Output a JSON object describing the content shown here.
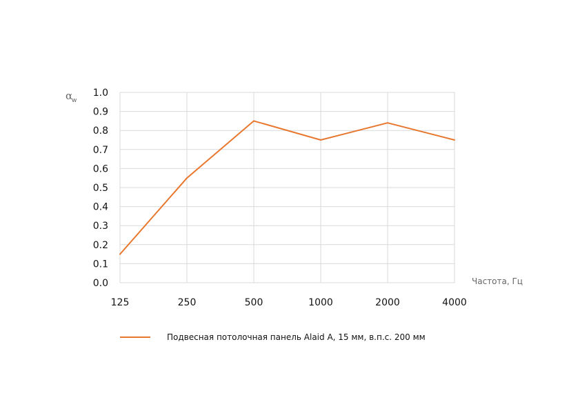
{
  "chart_data": {
    "type": "line",
    "x_scale": "log2",
    "x": [
      125,
      250,
      500,
      1000,
      2000,
      4000
    ],
    "x_tick_labels": [
      "125",
      "250",
      "500",
      "1000",
      "2000",
      "4000"
    ],
    "y_ticks": [
      "0.0",
      "0.1",
      "0.2",
      "0.3",
      "0.4",
      "0.5",
      "0.6",
      "0.7",
      "0.8",
      "0.9",
      "1.0"
    ],
    "ylim": [
      0,
      1
    ],
    "xlabel": "Частота, Гц",
    "ylabel": "α",
    "ylabel_sub": "w",
    "grid": true,
    "legend_position": "bottom",
    "series": [
      {
        "name": "Подвесная потолочная панель Alaid A, 15 мм, в.п.с. 200 мм",
        "color": "#e8772e",
        "values": [
          0.15,
          0.55,
          0.85,
          0.75,
          0.84,
          0.75
        ]
      }
    ]
  }
}
